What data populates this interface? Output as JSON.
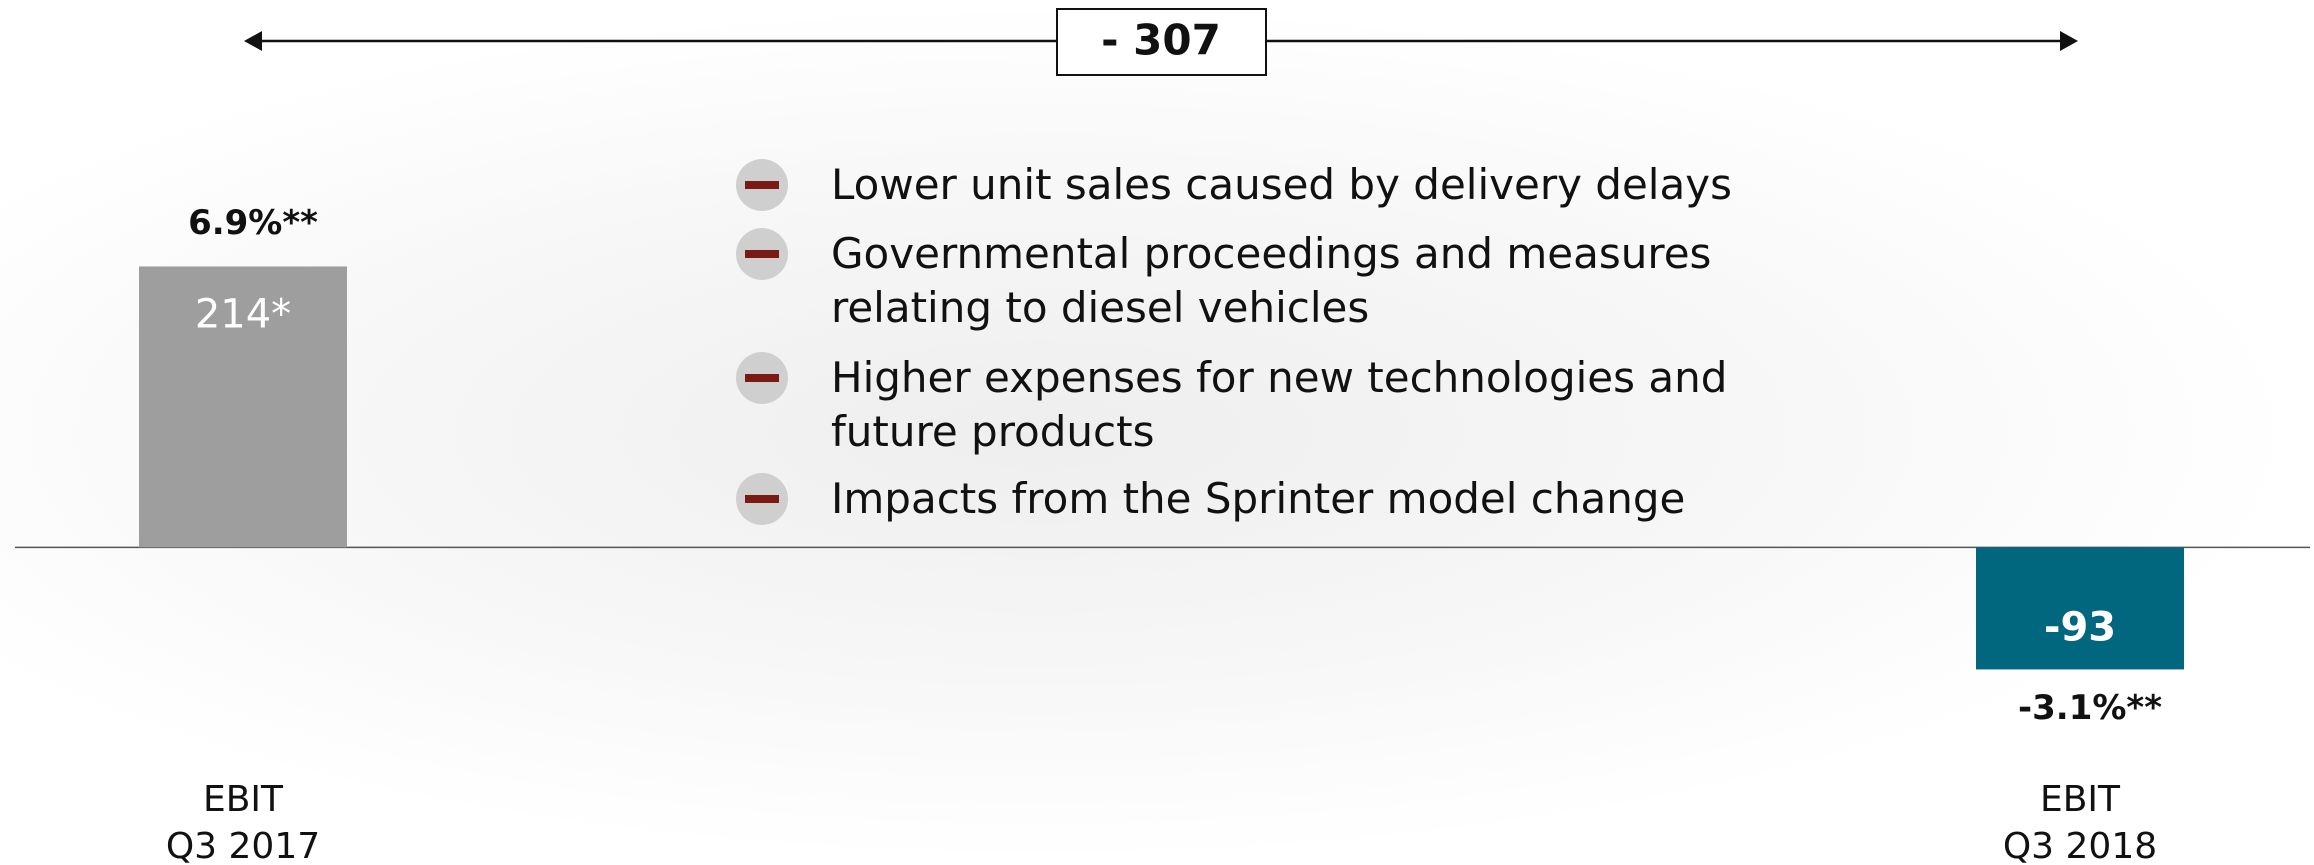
{
  "chart_data": {
    "type": "bar",
    "categories": [
      "EBIT\nQ3 2017",
      "EBIT\nQ3 2018"
    ],
    "values": [
      214,
      -93
    ],
    "value_labels": [
      "214*",
      "-93"
    ],
    "margin_labels": [
      "6.9%**",
      "-3.1%**"
    ],
    "colors": [
      "#9e9e9e",
      "#00677f"
    ],
    "ylim": [
      -242,
      417
    ],
    "delta": {
      "value": -307,
      "label": "- 307"
    },
    "annotations": [
      "Lower unit sales caused by delivery delays",
      "Governmental proceedings and measures relating to diesel vehicles",
      "Higher expenses for new technologies and future products",
      "Impacts from the Sprinter model change"
    ]
  }
}
